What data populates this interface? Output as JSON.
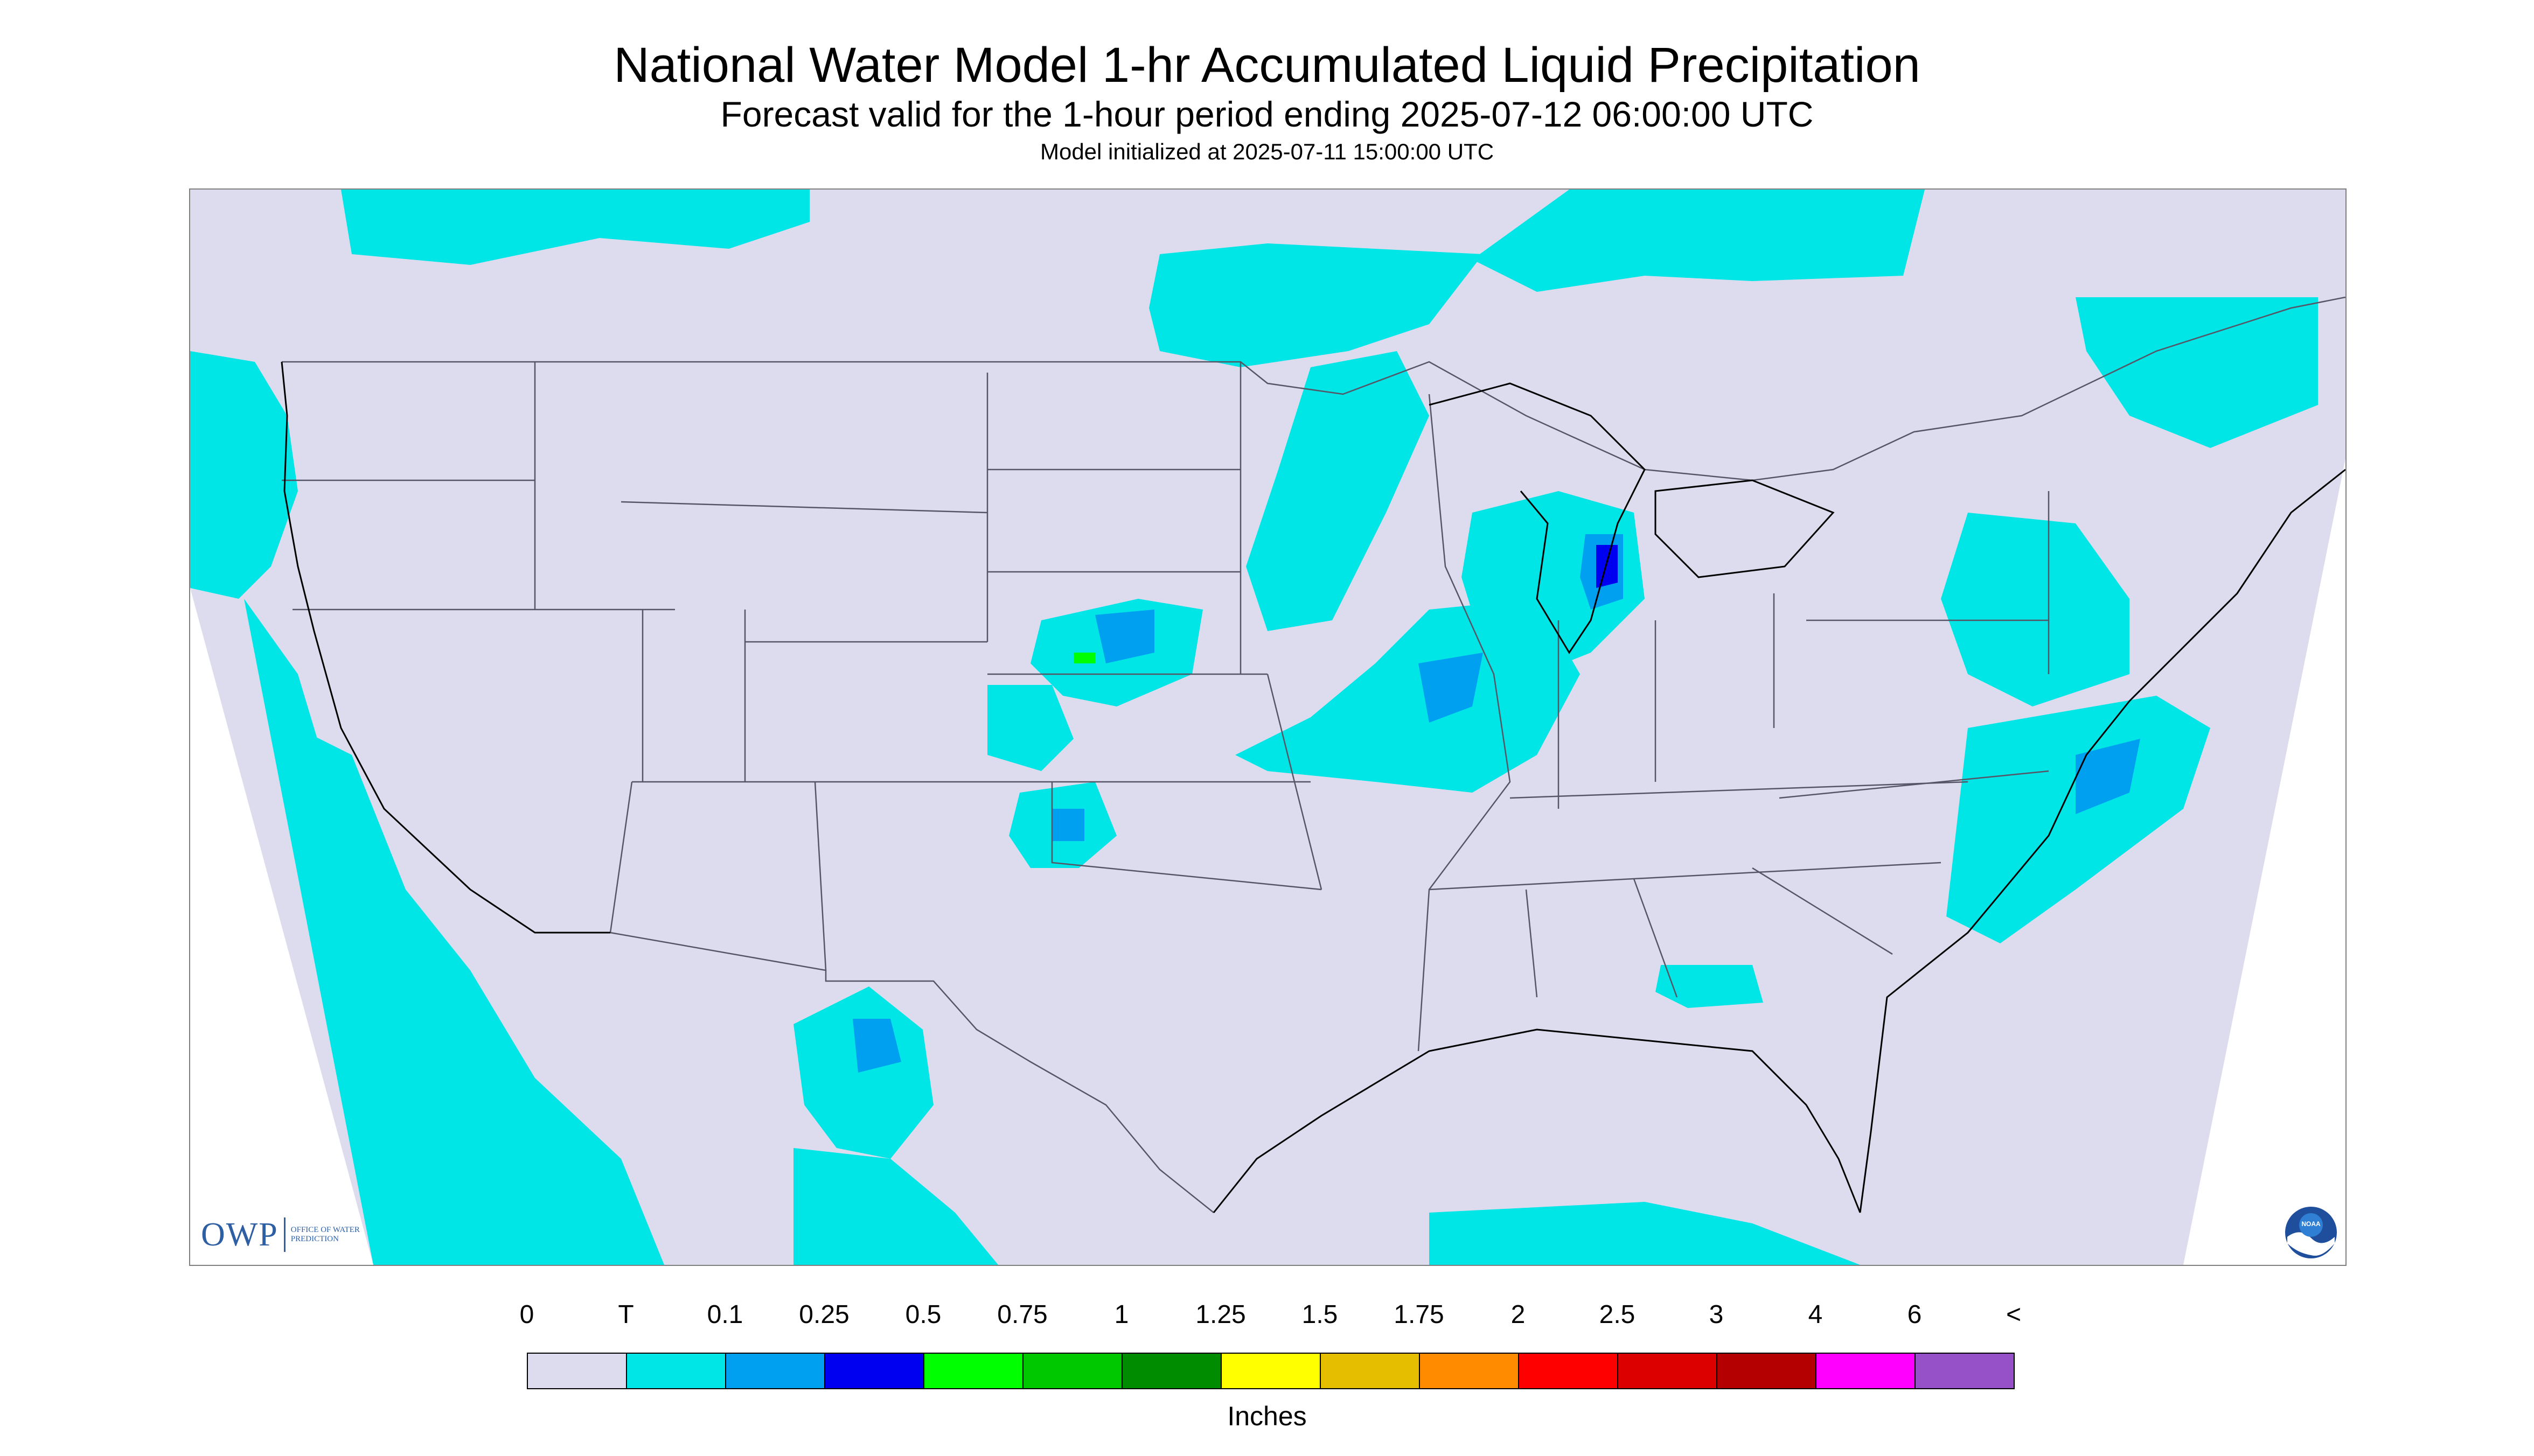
{
  "header": {
    "title": "National Water Model 1-hr Accumulated Liquid Precipitation",
    "subtitle": "Forecast valid for the 1-hour period ending 2025-07-12 06:00:00 UTC",
    "init_text": "Model initialized at 2025-07-11 15:00:00 UTC"
  },
  "map": {
    "background_color": "#dcdcee",
    "outside_domain_color": "#ffffff",
    "border_color": "#555566",
    "coast_color": "#000000"
  },
  "logos": {
    "owp": {
      "text": "OWP",
      "subtext": "OFFICE OF WATER PREDICTION"
    },
    "noaa": {
      "text": "NOAA"
    }
  },
  "legend": {
    "labels": [
      "0",
      "T",
      "0.1",
      "0.25",
      "0.5",
      "0.75",
      "1",
      "1.25",
      "1.5",
      "1.75",
      "2",
      "2.5",
      "3",
      "4",
      "6",
      "<"
    ],
    "colors": [
      "#dcdcee",
      "#00e5e5",
      "#00a0f0",
      "#0000f0",
      "#00ff00",
      "#00c800",
      "#008c00",
      "#ffff00",
      "#e6be00",
      "#ff8c00",
      "#ff0000",
      "#dc0000",
      "#b40000",
      "#ff00ff",
      "#9650c8"
    ],
    "units": "Inches"
  }
}
